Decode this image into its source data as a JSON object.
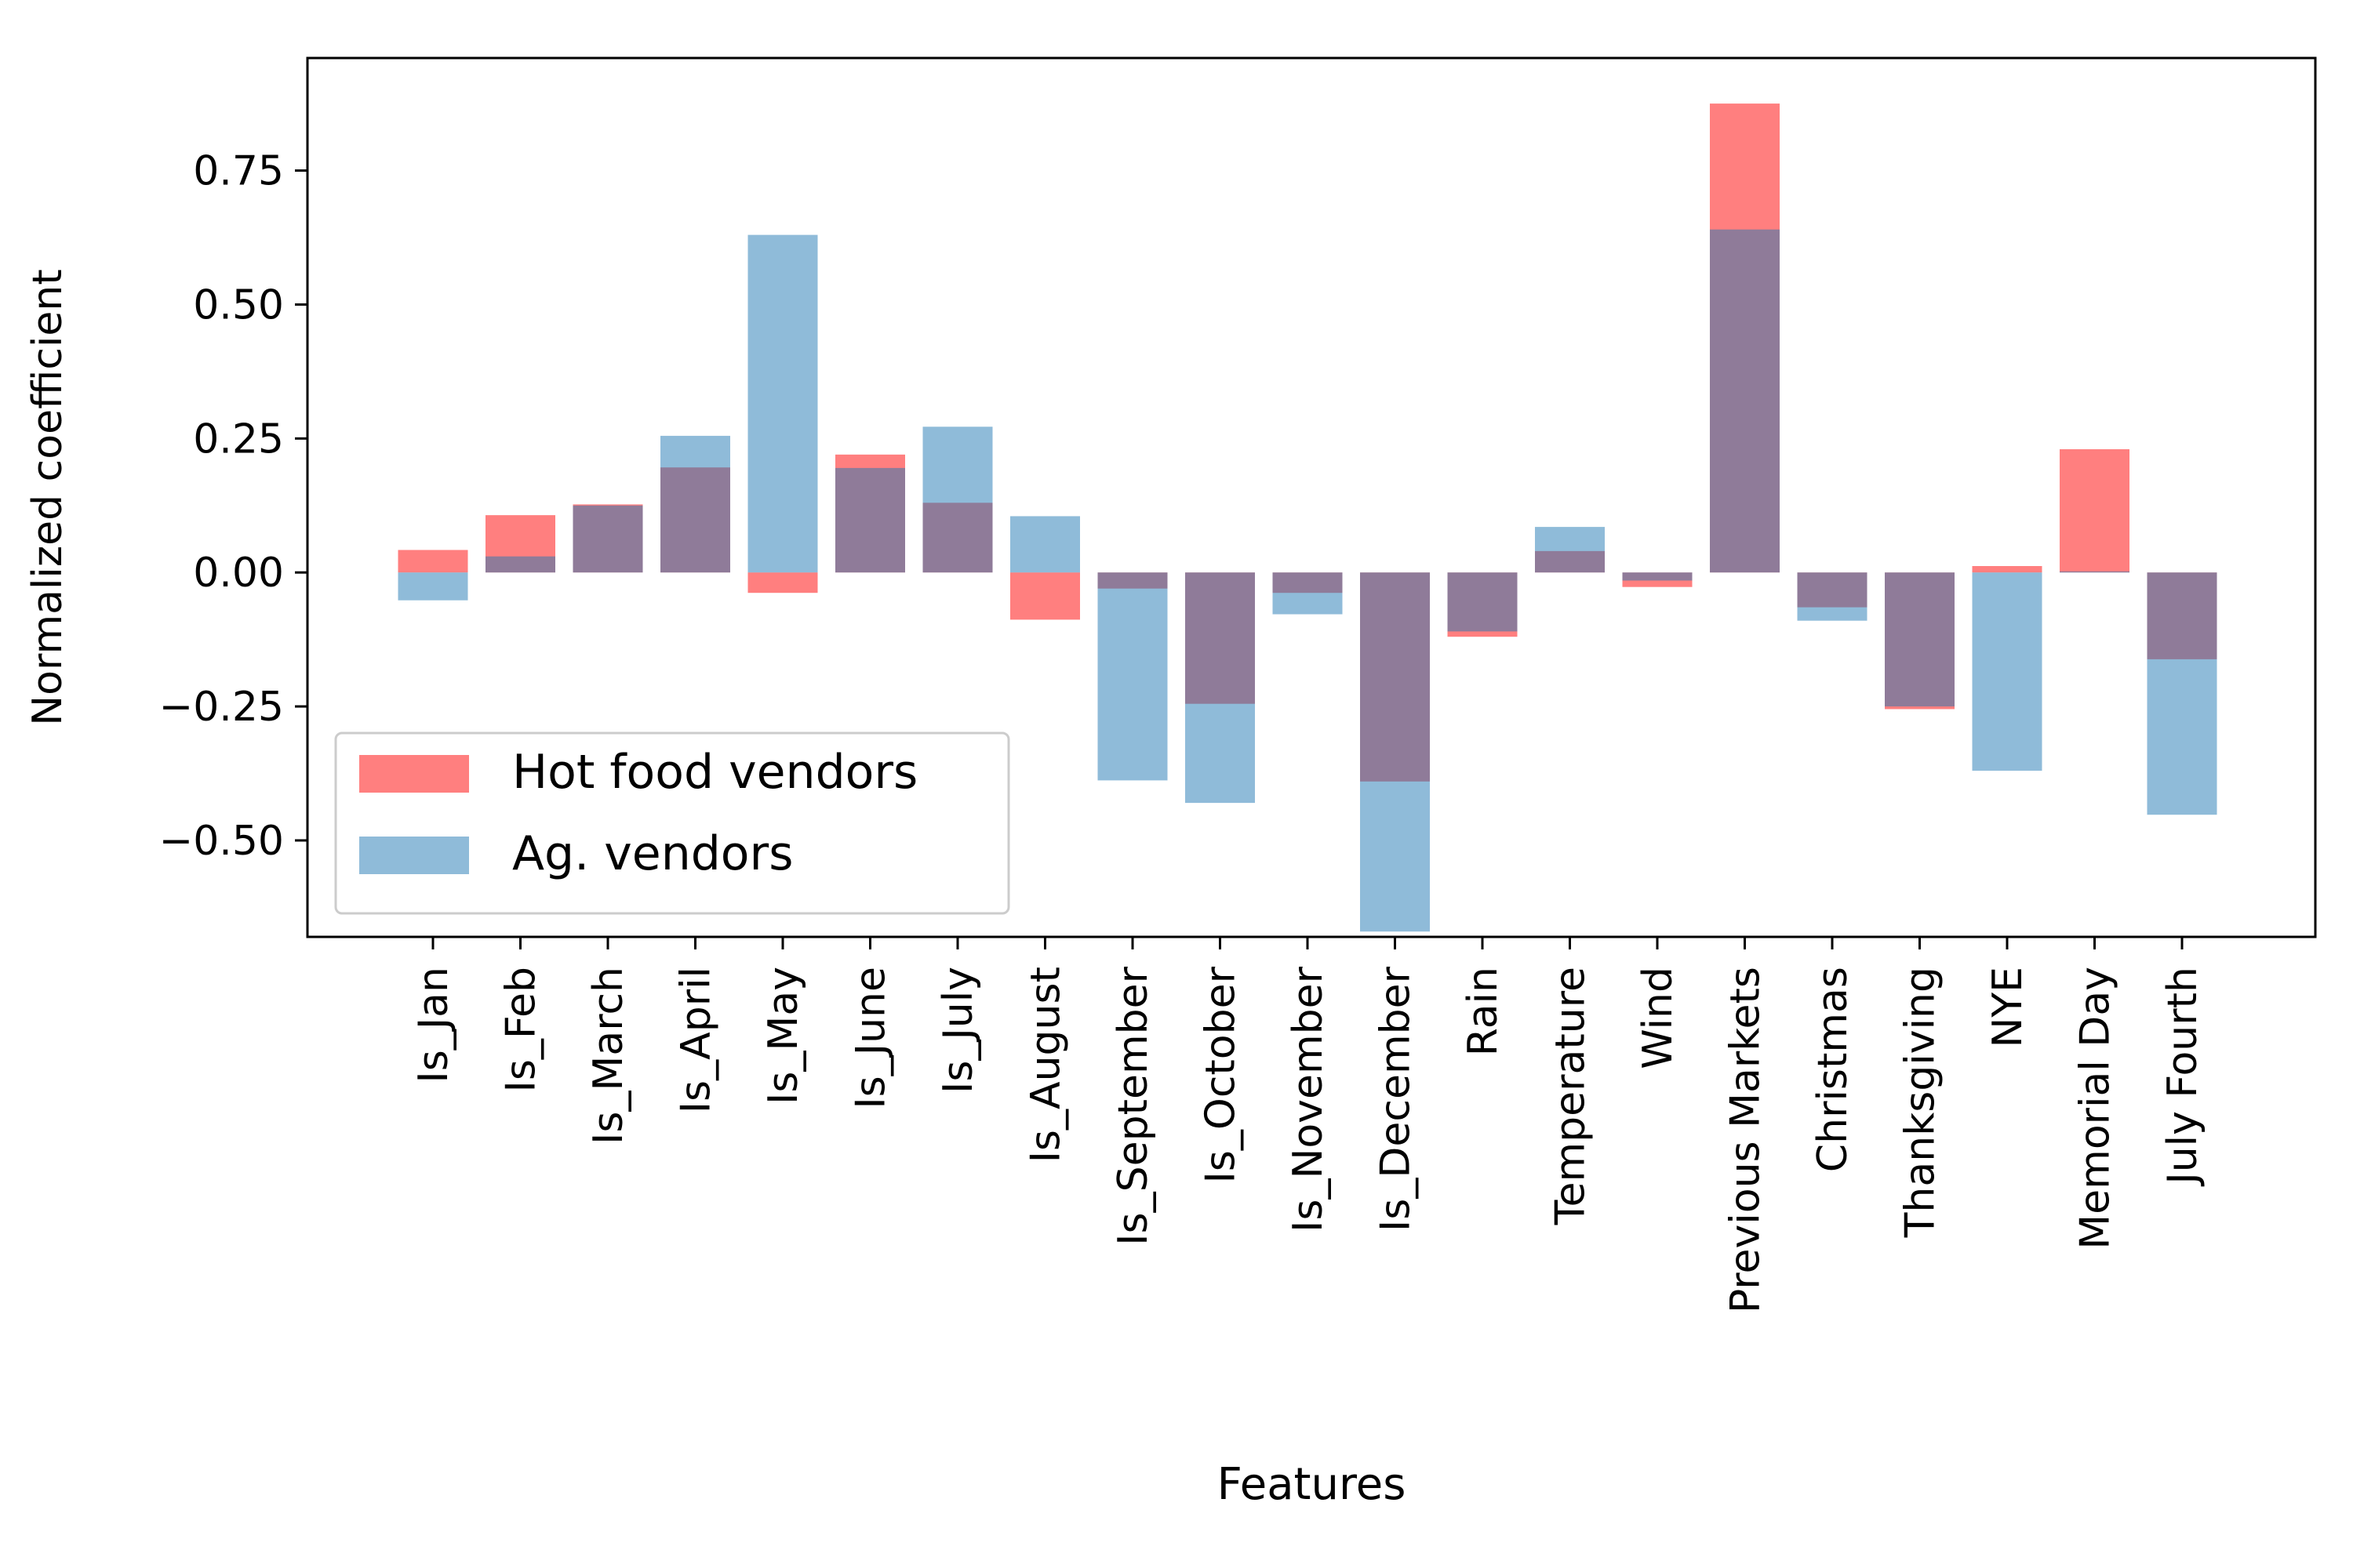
{
  "chart_data": {
    "type": "bar",
    "xlabel": "Features",
    "ylabel": "Normalized coefficient",
    "ylim": [
      -0.68,
      0.96
    ],
    "yticks": [
      -0.5,
      -0.25,
      0.0,
      0.25,
      0.5,
      0.75
    ],
    "ytick_labels": [
      "−0.50",
      "−0.25",
      "0.00",
      "0.25",
      "0.50",
      "0.75"
    ],
    "grid": false,
    "legend_position": "lower-left",
    "categories": [
      "Is_Jan",
      "Is_Feb",
      "Is_March",
      "Is_April",
      "Is_May",
      "Is_June",
      "Is_July",
      "Is_August",
      "Is_September",
      "Is_October",
      "Is_November",
      "Is_December",
      "Rain",
      "Temperature",
      "Wind",
      "Previous Markets",
      "Christmas",
      "Thanksgiving",
      "NYE",
      "Memorial Day",
      "July Fourth"
    ],
    "series": [
      {
        "name": "Hot food vendors",
        "color": "#ff0000",
        "opacity": 0.5,
        "values": [
          0.042,
          0.107,
          0.127,
          0.196,
          -0.038,
          0.22,
          0.13,
          -0.088,
          -0.03,
          -0.245,
          -0.038,
          -0.39,
          -0.12,
          0.04,
          -0.027,
          0.875,
          -0.065,
          -0.255,
          0.012,
          0.23,
          -0.162
        ]
      },
      {
        "name": "Ag. vendors",
        "color": "#1f77b4",
        "opacity": 0.5,
        "values": [
          -0.052,
          0.03,
          0.125,
          0.255,
          0.63,
          0.195,
          0.272,
          0.105,
          -0.388,
          -0.43,
          -0.078,
          -0.67,
          -0.11,
          0.085,
          -0.015,
          0.64,
          -0.09,
          -0.25,
          -0.37,
          0.002,
          -0.452
        ]
      }
    ]
  }
}
